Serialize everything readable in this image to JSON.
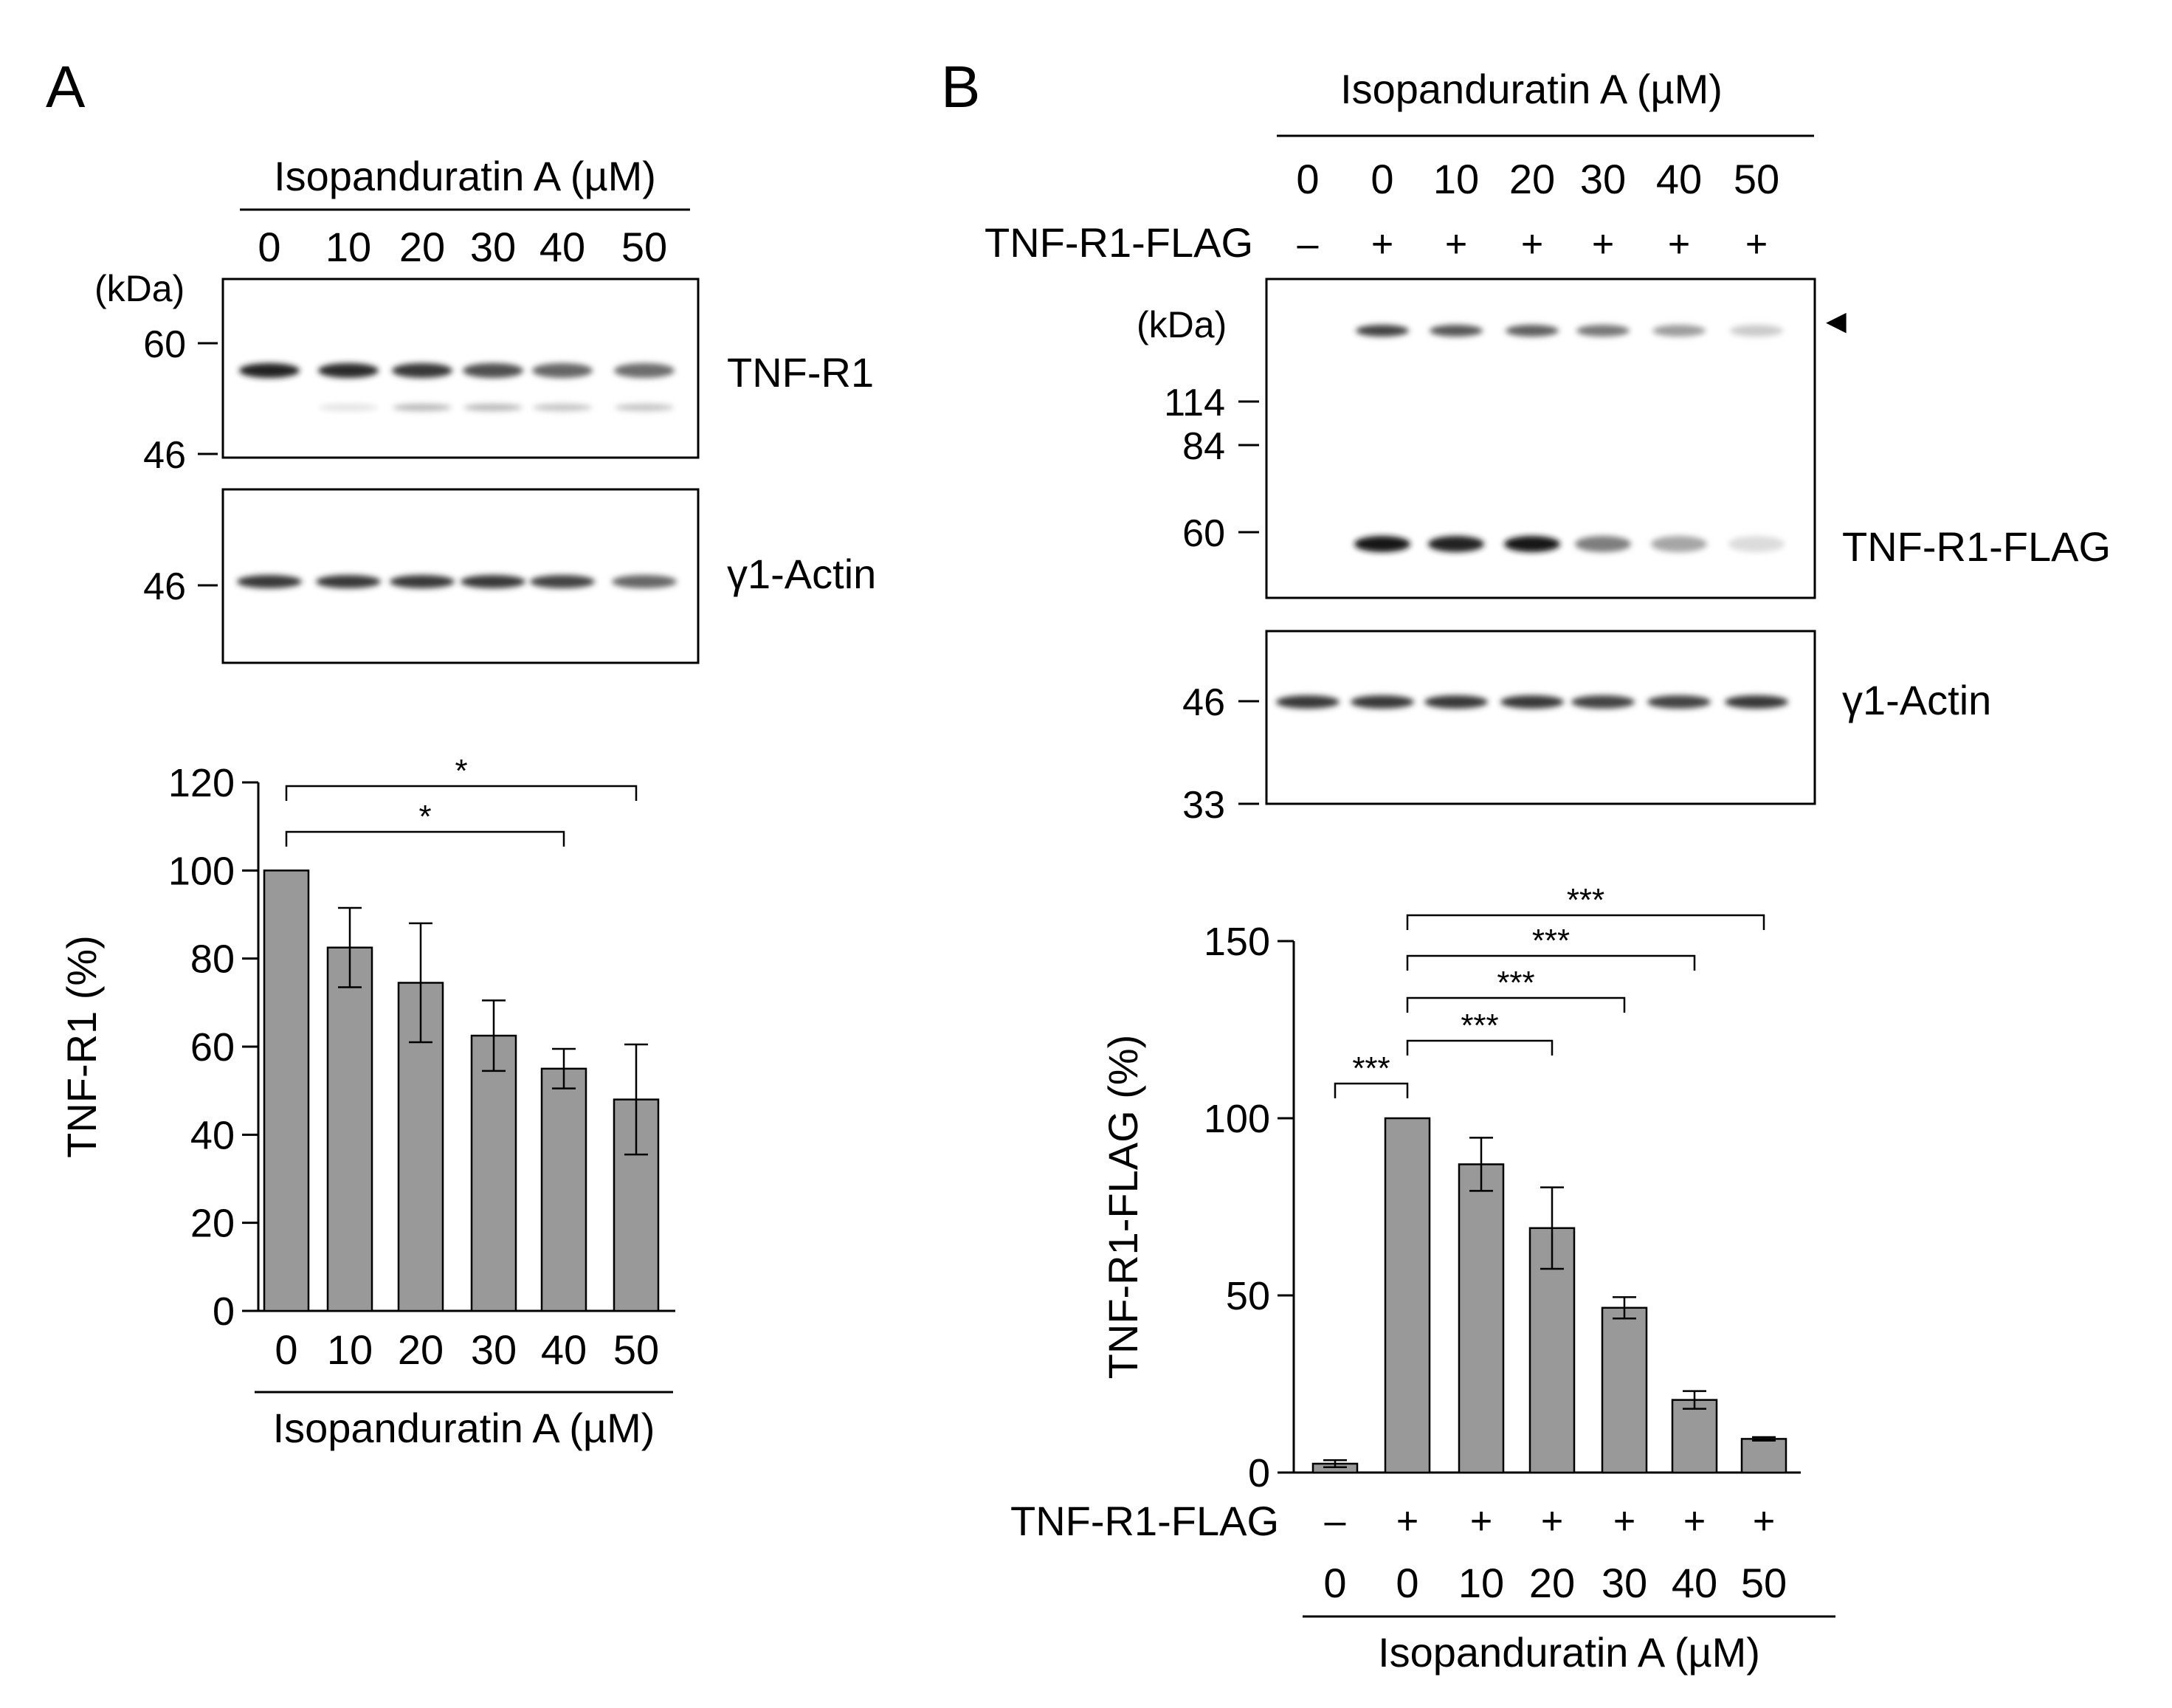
{
  "panels": {
    "a": {
      "letter": "A",
      "blot_header": "Isopanduratin A (µM)",
      "lanes": [
        "0",
        "10",
        "20",
        "30",
        "40",
        "50"
      ],
      "kda_label": "(kDa)",
      "top_markers": [
        "60",
        "46"
      ],
      "top_label": "TNF-R1",
      "bottom_marker": "46",
      "bottom_label": "γ1-Actin",
      "top_band_intensity": [
        0.95,
        0.9,
        0.85,
        0.75,
        0.65,
        0.62
      ],
      "top_minor_band_intensity": [
        0.0,
        0.12,
        0.3,
        0.3,
        0.25,
        0.25
      ],
      "bottom_band_intensity": [
        0.85,
        0.85,
        0.85,
        0.85,
        0.8,
        0.65
      ]
    },
    "b": {
      "letter": "B",
      "blot_header": "Isopanduratin A (µM)",
      "lanes": [
        "0",
        "0",
        "10",
        "20",
        "30",
        "40",
        "50"
      ],
      "flag_row_label": "TNF-R1-FLAG",
      "flag_signs": [
        "–",
        "+",
        "+",
        "+",
        "+",
        "+",
        "+"
      ],
      "kda_label": "(kDa)",
      "top_markers": [
        "114",
        "84",
        "60"
      ],
      "top_label": "TNF-R1-FLAG",
      "arrow_glyph": "◀",
      "bottom_markers": [
        "46",
        "33"
      ],
      "bottom_label": "γ1-Actin",
      "upper_band_intensity": [
        0.0,
        0.8,
        0.72,
        0.68,
        0.58,
        0.42,
        0.22
      ],
      "lower_band_intensity": [
        0.0,
        1.0,
        0.95,
        0.98,
        0.55,
        0.38,
        0.15
      ],
      "bottom_band_intensity": [
        0.85,
        0.85,
        0.85,
        0.85,
        0.8,
        0.8,
        0.85
      ]
    }
  },
  "chart_data": [
    {
      "type": "bar",
      "panel": "A",
      "title": "",
      "categories": [
        "0",
        "10",
        "20",
        "30",
        "40",
        "50"
      ],
      "values": [
        100,
        82.5,
        74.5,
        62.5,
        55,
        48
      ],
      "errors": [
        0,
        9,
        13.5,
        8,
        4.5,
        12.5
      ],
      "ylabel": "TNF-R1 (%)",
      "xlabel": "Isopanduratin A (µM)",
      "ylim": [
        0,
        120
      ],
      "yticks": [
        "0",
        "20",
        "40",
        "60",
        "80",
        "100",
        "120"
      ],
      "grid": false,
      "significance": [
        {
          "from": 0,
          "to": 5,
          "label": "*"
        },
        {
          "from": 0,
          "to": 4,
          "label": "*"
        }
      ]
    },
    {
      "type": "bar",
      "panel": "B",
      "title": "",
      "categories": [
        "0",
        "0",
        "10",
        "20",
        "30",
        "40",
        "50"
      ],
      "flag_signs": [
        "–",
        "+",
        "+",
        "+",
        "+",
        "+",
        "+"
      ],
      "flag_row_label": "TNF-R1-FLAG",
      "values": [
        2.5,
        100,
        87,
        69,
        46.5,
        20.5,
        9.5
      ],
      "errors": [
        1,
        0,
        7.5,
        11.5,
        3,
        2.5,
        0.5
      ],
      "ylabel": "TNF-R1-FLAG (%)",
      "xlabel": "Isopanduratin A (µM)",
      "ylim": [
        0,
        150
      ],
      "yticks": [
        "0",
        "50",
        "100",
        "150"
      ],
      "grid": false,
      "significance": [
        {
          "from": 1,
          "to": 6,
          "label": "***"
        },
        {
          "from": 1,
          "to": 5,
          "label": "***"
        },
        {
          "from": 1,
          "to": 4,
          "label": "***"
        },
        {
          "from": 1,
          "to": 3,
          "label": "***"
        },
        {
          "from": 0,
          "to": 1,
          "label": "***"
        }
      ]
    }
  ]
}
